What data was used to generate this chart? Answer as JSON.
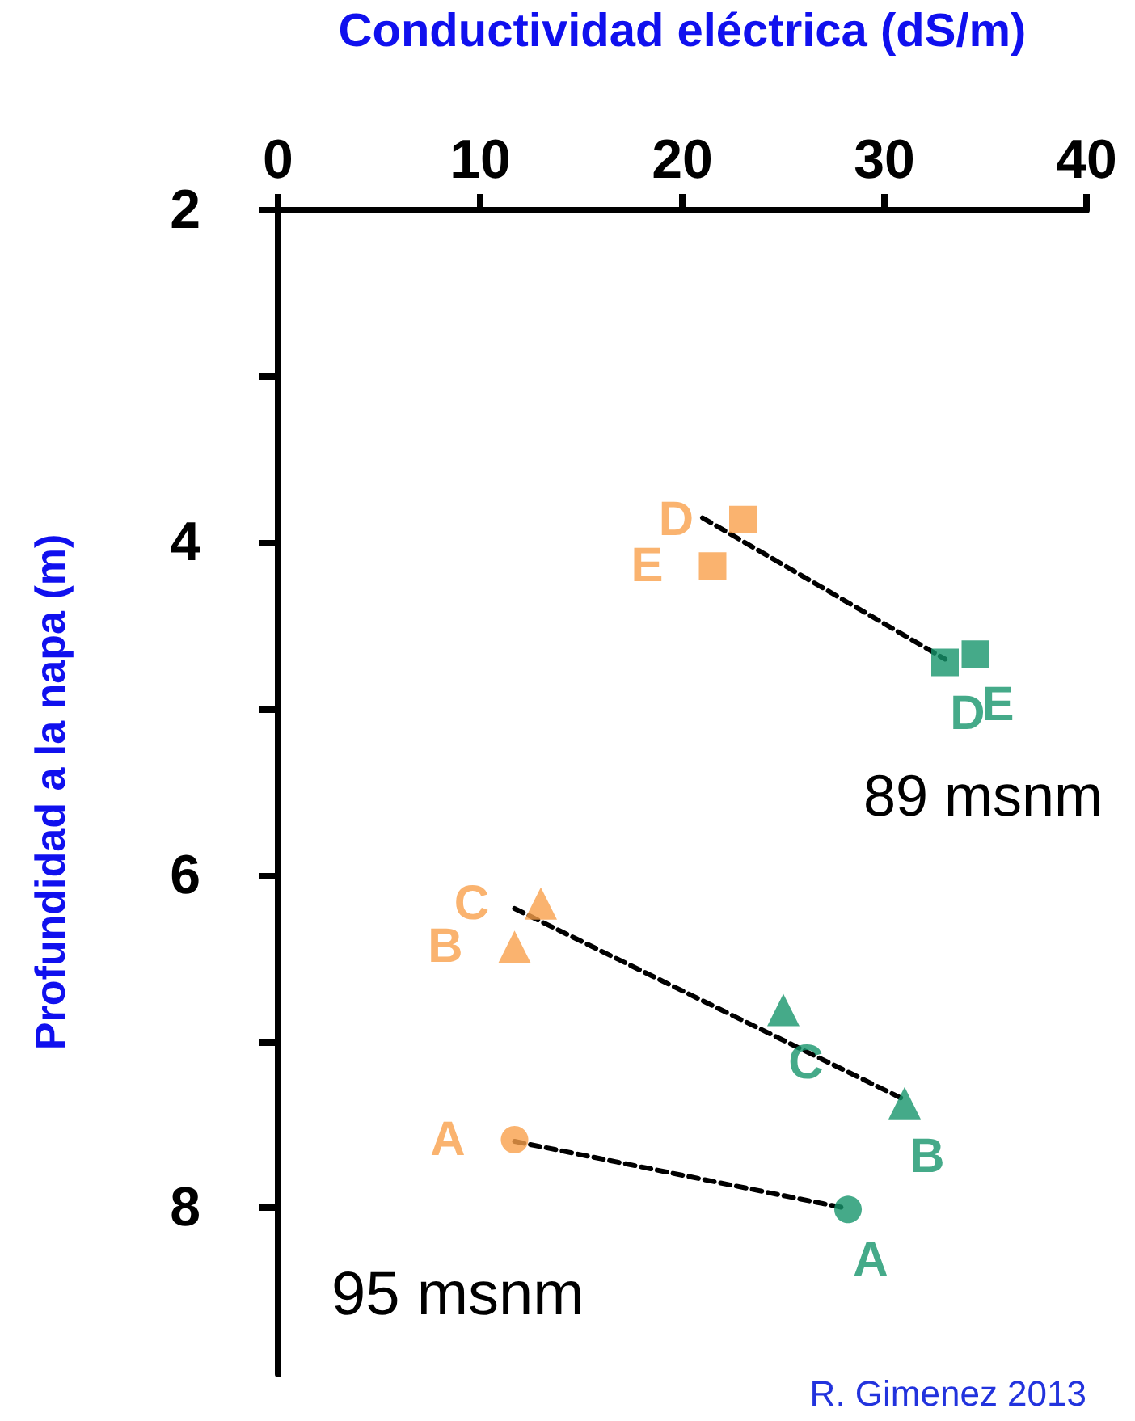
{
  "chart_data": {
    "type": "scatter",
    "xlabel": "Conductividad eléctrica (dS/m)",
    "ylabel": "Profundidad a la napa (m)",
    "xlim": [
      0,
      40
    ],
    "xticks": [
      0,
      10,
      20,
      30,
      40
    ],
    "ylim": [
      9,
      2
    ],
    "yticks": [
      2,
      {
        "value": 3,
        "label": null
      },
      4,
      {
        "value": 5,
        "label": null
      },
      6,
      {
        "value": 7,
        "label": null
      },
      8
    ],
    "grid": false,
    "series": [
      {
        "color": "#f9a04b",
        "marker": "square",
        "x": [
          23,
          21.5
        ],
        "values": [
          3.86,
          4.14
        ],
        "value_labels": [
          "D",
          "E"
        ]
      },
      {
        "color": "#16956c",
        "marker": "square",
        "x": [
          33,
          34.5
        ],
        "values": [
          4.72,
          4.67
        ],
        "value_labels": [
          "D",
          "E"
        ]
      },
      {
        "color": "#f9a04b",
        "marker": "triangle",
        "x": [
          13,
          11.7
        ],
        "values": [
          6.17,
          6.43
        ],
        "value_labels": [
          "C",
          "B"
        ]
      },
      {
        "color": "#16956c",
        "marker": "triangle",
        "x": [
          25,
          31
        ],
        "values": [
          6.81,
          7.37
        ],
        "value_labels": [
          "C",
          "B"
        ]
      },
      {
        "color": "#f9a04b",
        "marker": "circle",
        "x": [
          11.7
        ],
        "values": [
          7.59
        ],
        "value_labels": [
          "A"
        ]
      },
      {
        "color": "#16956c",
        "marker": "circle",
        "x": [
          28.2
        ],
        "values": [
          8.01
        ],
        "value_labels": [
          "A"
        ]
      },
      {
        "type": "line",
        "color": "#000000",
        "line_style": "dashed",
        "marker": "none",
        "x": [
          21,
          33
        ],
        "values": [
          3.85,
          4.7
        ]
      },
      {
        "type": "line",
        "color": "#000000",
        "line_style": "dashed",
        "marker": "none",
        "x": [
          11.7,
          31
        ],
        "values": [
          6.2,
          7.35
        ]
      },
      {
        "type": "line",
        "color": "#000000",
        "line_style": "dashed",
        "marker": "none",
        "x": [
          11.7,
          28
        ],
        "values": [
          7.6,
          8.0
        ]
      }
    ],
    "annotations": [
      "89 msnm",
      "95 msnm",
      "R. Gimenez 2013"
    ]
  }
}
